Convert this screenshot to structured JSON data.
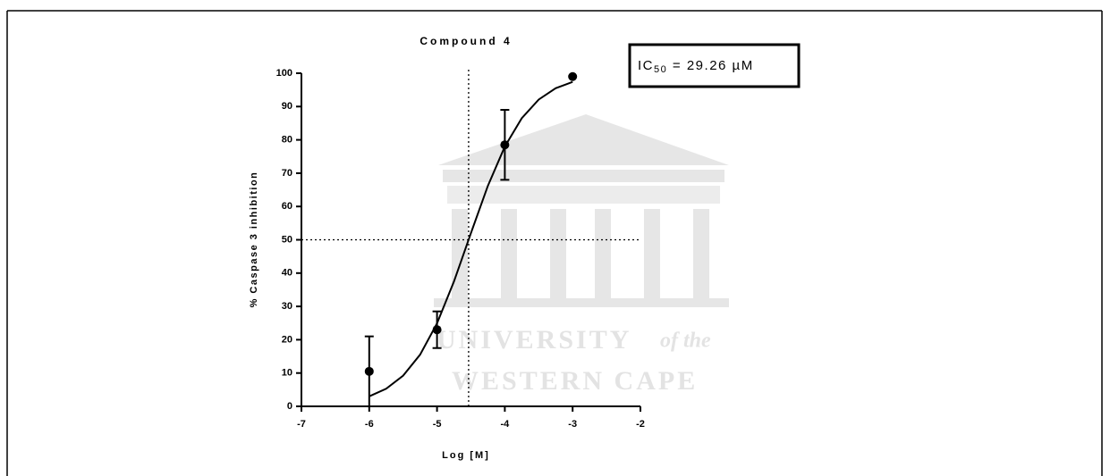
{
  "chart_data": {
    "type": "scatter",
    "title": "Compound 4",
    "x_label": "Log [M]",
    "y_label": "% Caspase 3 inhibition",
    "xlim": [
      -7,
      -2
    ],
    "xticks": [
      -7,
      -6,
      -5,
      -4,
      -3,
      -2
    ],
    "ylim": [
      0,
      100
    ],
    "yticks": [
      0,
      10,
      20,
      30,
      40,
      50,
      60,
      70,
      80,
      90,
      100
    ],
    "x": [
      -6,
      -5,
      -4,
      -3
    ],
    "series": [
      {
        "color": "#000000",
        "values": [
          10.5,
          23,
          78.5,
          99
        ],
        "errors": [
          10.5,
          5.5,
          10.5,
          null
        ]
      }
    ],
    "fit": {
      "color": "#000000",
      "x": [
        -6,
        -5.75,
        -5.5,
        -5.25,
        -5,
        -4.75,
        -4.5,
        -4.25,
        -4,
        -3.75,
        -3.5,
        -3.25,
        -3
      ],
      "y": [
        3.0,
        5.3,
        9.2,
        15.5,
        24.9,
        37.5,
        52.0,
        66.2,
        78.0,
        86.5,
        92.1,
        95.5,
        97.4
      ]
    },
    "reference_lines": {
      "x": -4.534,
      "y": 50
    },
    "annotation": {
      "main": "IC",
      "subscript": "50",
      "rest": " = 29.26 µM"
    },
    "watermark": [
      "UNIVERSITY",
      "of the",
      "WESTERN CAPE"
    ]
  }
}
